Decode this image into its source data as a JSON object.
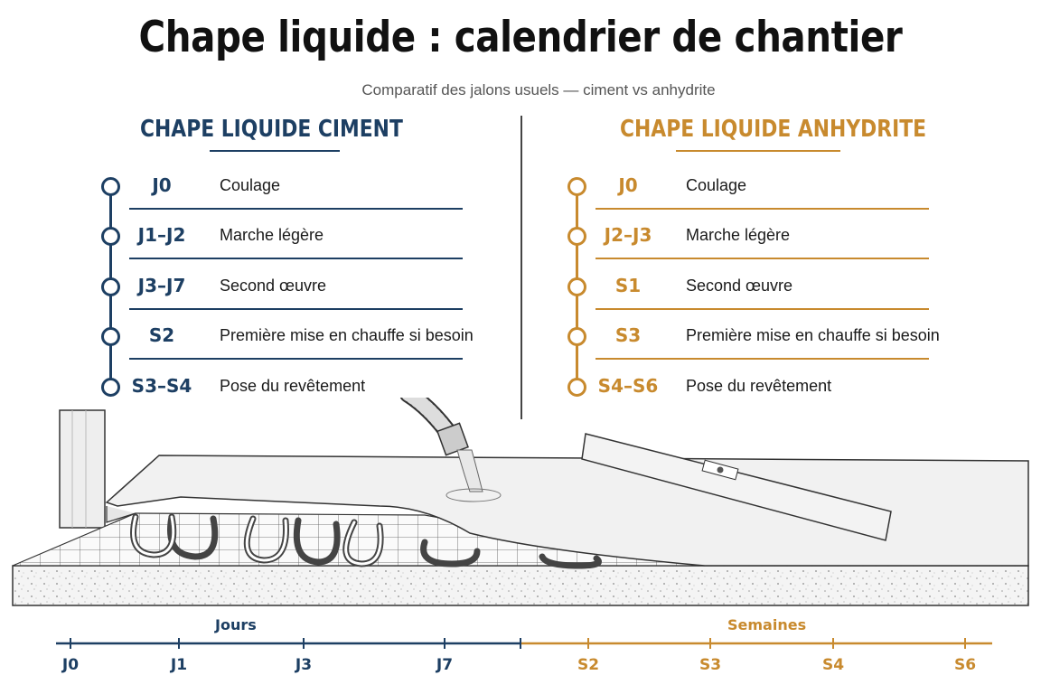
{
  "title": "Chape liquide : calendrier de chantier",
  "subtitle": "Comparatif des jalons usuels — ciment vs anhydrite",
  "colors": {
    "ciment": "#1d3f63",
    "anhydrite": "#c88a2e"
  },
  "ciment": {
    "heading": "CHAPE LIQUIDE CIMENT",
    "milestones": [
      {
        "code": "J0",
        "label": "Coulage"
      },
      {
        "code": "J1–J2",
        "label": "Marche légère"
      },
      {
        "code": "J3–J7",
        "label": "Second œuvre"
      },
      {
        "code": "S2",
        "label": "Première mise en chauffe si besoin"
      },
      {
        "code": "S3–S4",
        "label": "Pose du revêtement"
      }
    ]
  },
  "anhydrite": {
    "heading": "CHAPE LIQUIDE ANHYDRITE",
    "milestones": [
      {
        "code": "J0",
        "label": "Coulage"
      },
      {
        "code": "J2–J3",
        "label": "Marche légère"
      },
      {
        "code": "S1",
        "label": "Second œuvre"
      },
      {
        "code": "S3",
        "label": "Première mise en chauffe si besoin"
      },
      {
        "code": "S4–S6",
        "label": "Pose du revêtement"
      }
    ]
  },
  "axis": {
    "jours_label": "Jours",
    "semaines_label": "Semaines",
    "ticks": [
      "J0",
      "J1",
      "J3",
      "J7",
      "S2",
      "S3",
      "S4",
      "S6"
    ]
  }
}
